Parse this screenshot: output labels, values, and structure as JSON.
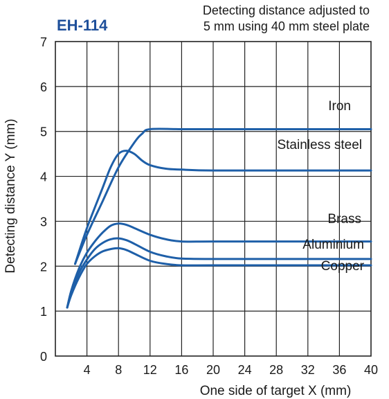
{
  "chart_data": {
    "type": "line",
    "title": "EH-114",
    "subtitle_lines": [
      "Detecting distance adjusted to",
      "5 mm using 40 mm steel plate"
    ],
    "xlabel": "One side of target X (mm)",
    "ylabel": "Detecting distance Y (mm)",
    "xlim": [
      0,
      40
    ],
    "ylim": [
      0,
      7
    ],
    "x_ticks": [
      4,
      8,
      12,
      16,
      20,
      24,
      28,
      32,
      36,
      40
    ],
    "y_ticks": [
      0,
      1,
      2,
      3,
      4,
      5,
      6,
      7
    ],
    "grid": true,
    "colors": {
      "series": "#1e5fa8",
      "grid": "#222222",
      "title": "#1e4f9a"
    },
    "series": [
      {
        "name": "Iron",
        "x": [
          2.5,
          4,
          6,
          8,
          10,
          11,
          12,
          16,
          20,
          30,
          40
        ],
        "y": [
          2.05,
          2.7,
          3.45,
          4.2,
          4.75,
          4.95,
          5.05,
          5.05,
          5.05,
          5.05,
          5.05
        ]
      },
      {
        "name": "Stainless steel",
        "x": [
          2.5,
          4,
          6,
          7,
          8,
          9,
          10,
          11,
          12,
          14,
          16,
          20,
          30,
          40
        ],
        "y": [
          2.05,
          2.85,
          3.75,
          4.2,
          4.5,
          4.57,
          4.5,
          4.35,
          4.25,
          4.17,
          4.15,
          4.13,
          4.13,
          4.13
        ]
      },
      {
        "name": "Brass",
        "x": [
          1.5,
          2,
          3,
          4,
          5,
          6,
          7,
          8,
          9,
          10,
          12,
          14,
          16,
          20,
          30,
          40
        ],
        "y": [
          1.08,
          1.45,
          1.95,
          2.3,
          2.55,
          2.75,
          2.9,
          2.95,
          2.92,
          2.85,
          2.7,
          2.6,
          2.55,
          2.55,
          2.55,
          2.55
        ]
      },
      {
        "name": "Aluminium",
        "x": [
          1.5,
          2,
          3,
          4,
          5,
          6,
          7,
          8,
          9,
          10,
          12,
          14,
          16,
          20,
          30,
          40
        ],
        "y": [
          1.08,
          1.4,
          1.85,
          2.15,
          2.38,
          2.52,
          2.6,
          2.62,
          2.58,
          2.5,
          2.32,
          2.22,
          2.17,
          2.16,
          2.16,
          2.16
        ]
      },
      {
        "name": "Copper",
        "x": [
          1.5,
          2,
          3,
          4,
          5,
          6,
          7,
          8,
          9,
          10,
          12,
          14,
          16,
          20,
          30,
          40
        ],
        "y": [
          1.08,
          1.35,
          1.75,
          2.05,
          2.22,
          2.33,
          2.38,
          2.4,
          2.36,
          2.28,
          2.12,
          2.05,
          2.02,
          2.02,
          2.02,
          2.02
        ]
      }
    ]
  }
}
